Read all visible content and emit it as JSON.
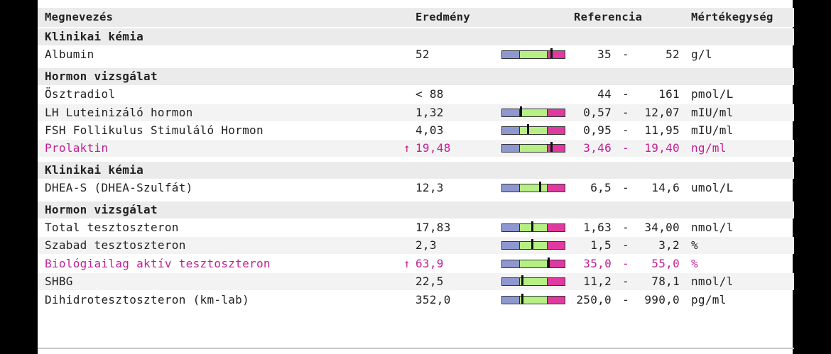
{
  "header": {
    "name": "Megnevezés",
    "result": "Eredmény",
    "reference": "Referencia",
    "unit": "Mértékegység"
  },
  "rows": [
    {
      "type": "section",
      "name": "Klinikai kémia"
    },
    {
      "type": "item",
      "name": "Albumin",
      "result": "52",
      "low": "35",
      "high": "52",
      "unit": "g/l",
      "marker": 0.78
    },
    {
      "type": "spacer"
    },
    {
      "type": "section",
      "name": "Hormon vizsgálat"
    },
    {
      "type": "item",
      "name": "Ösztradiol",
      "result": "< 88",
      "low": "44",
      "high": "161",
      "unit": "pmol/L"
    },
    {
      "type": "item",
      "name": "LH Luteinizáló hormon",
      "result": "1,32",
      "low": "0,57",
      "high": "12,07",
      "unit": "mIU/ml",
      "marker": 0.3
    },
    {
      "type": "item",
      "name": "FSH Follikulus Stimuláló Hormon",
      "result": "4,03",
      "low": "0,95",
      "high": "11,95",
      "unit": "mIU/ml",
      "marker": 0.41
    },
    {
      "type": "item",
      "name": "Prolaktin",
      "result": "19,48",
      "low": "3,46",
      "high": "19,40",
      "unit": "ng/ml",
      "flag": "↑",
      "marker": 0.78
    },
    {
      "type": "spacer"
    },
    {
      "type": "section",
      "name": "Klinikai kémia"
    },
    {
      "type": "item",
      "name": "DHEA-S (DHEA-Szulfát)",
      "result": "12,3",
      "low": "6,5",
      "high": "14,6",
      "unit": "umol/L",
      "marker": 0.6
    },
    {
      "type": "spacer"
    },
    {
      "type": "section",
      "name": "Hormon vizsgálat"
    },
    {
      "type": "item",
      "name": "Total tesztoszteron",
      "result": "17,83",
      "low": "1,63",
      "high": "34,00",
      "unit": "nmol/l",
      "marker": 0.48
    },
    {
      "type": "item",
      "name": "Szabad tesztoszteron",
      "result": "2,3",
      "low": "1,5",
      "high": "3,2",
      "unit": "%",
      "marker": 0.48
    },
    {
      "type": "item",
      "name": "Biológiailag aktív tesztoszteron",
      "result": "63,9",
      "low": "35,0",
      "high": "55,0",
      "unit": "%",
      "flag": "↑",
      "marker": 0.74
    },
    {
      "type": "item",
      "name": "SHBG",
      "result": "22,5",
      "low": "11,2",
      "high": "78,1",
      "unit": "nmol/l",
      "marker": 0.32
    },
    {
      "type": "item",
      "name": "Dihidrotesztoszteron (km-lab)",
      "result": "352,0",
      "low": "250,0",
      "high": "990,0",
      "unit": "pg/ml",
      "marker": 0.32
    }
  ],
  "colors": {
    "flag": "#c21f95",
    "bar_low": "#8e97d0",
    "bar_mid": "#b6ef83",
    "bar_high": "#de3a9f"
  }
}
